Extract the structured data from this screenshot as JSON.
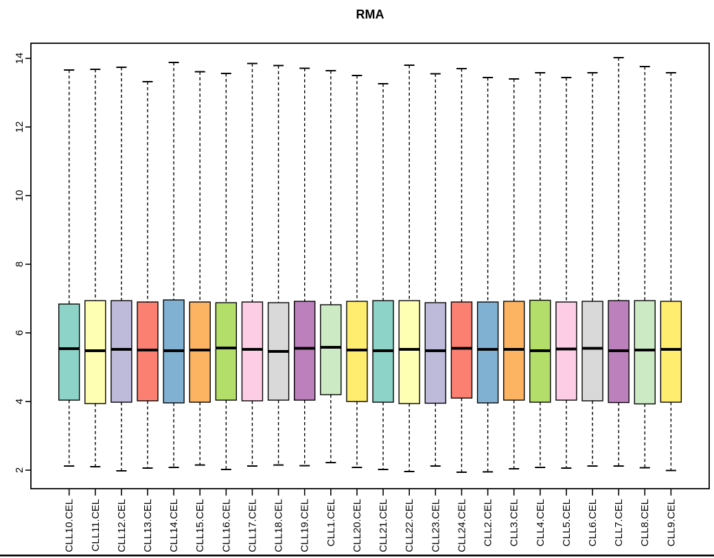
{
  "title": "RMA",
  "chart_data": {
    "type": "boxplot",
    "title": "RMA",
    "xlabel": "",
    "ylabel": "",
    "ylim": [
      1.44,
      14.44
    ],
    "yticks": [
      2,
      4,
      6,
      8,
      10,
      12,
      14
    ],
    "grid": false,
    "legend": "none",
    "palette": "Set3",
    "categories": [
      "CLL10.CEL",
      "CLL11.CEL",
      "CLL12.CEL",
      "CLL13.CEL",
      "CLL14.CEL",
      "CLL15.CEL",
      "CLL16.CEL",
      "CLL17.CEL",
      "CLL18.CEL",
      "CLL19.CEL",
      "CLL1.CEL",
      "CLL20.CEL",
      "CLL21.CEL",
      "CLL22.CEL",
      "CLL23.CEL",
      "CLL24.CEL",
      "CLL2.CEL",
      "CLL3.CEL",
      "CLL4.CEL",
      "CLL5.CEL",
      "CLL6.CEL",
      "CLL7.CEL",
      "CLL8.CEL",
      "CLL9.CEL"
    ],
    "series": [
      {
        "name": "CLL10.CEL",
        "color": "#8DD3C7",
        "low": 2.12,
        "q1": 4.04,
        "median": 5.54,
        "q3": 6.84,
        "high": 13.66
      },
      {
        "name": "CLL11.CEL",
        "color": "#FFFFB3",
        "low": 2.1,
        "q1": 3.94,
        "median": 5.48,
        "q3": 6.94,
        "high": 13.68
      },
      {
        "name": "CLL12.CEL",
        "color": "#BEBADA",
        "low": 1.98,
        "q1": 3.98,
        "median": 5.52,
        "q3": 6.94,
        "high": 13.74
      },
      {
        "name": "CLL13.CEL",
        "color": "#FB8072",
        "low": 2.06,
        "q1": 4.02,
        "median": 5.5,
        "q3": 6.9,
        "high": 13.32
      },
      {
        "name": "CLL14.CEL",
        "color": "#80B1D3",
        "low": 2.08,
        "q1": 3.96,
        "median": 5.48,
        "q3": 6.96,
        "high": 13.88
      },
      {
        "name": "CLL15.CEL",
        "color": "#FDB462",
        "low": 2.15,
        "q1": 3.98,
        "median": 5.5,
        "q3": 6.9,
        "high": 13.61
      },
      {
        "name": "CLL16.CEL",
        "color": "#B3DE69",
        "low": 2.02,
        "q1": 4.04,
        "median": 5.56,
        "q3": 6.88,
        "high": 13.56
      },
      {
        "name": "CLL17.CEL",
        "color": "#FCCDE5",
        "low": 2.12,
        "q1": 4.02,
        "median": 5.52,
        "q3": 6.9,
        "high": 13.85
      },
      {
        "name": "CLL18.CEL",
        "color": "#D9D9D9",
        "low": 2.15,
        "q1": 4.04,
        "median": 5.46,
        "q3": 6.88,
        "high": 13.79
      },
      {
        "name": "CLL19.CEL",
        "color": "#BC80BD",
        "low": 2.13,
        "q1": 4.04,
        "median": 5.55,
        "q3": 6.92,
        "high": 13.71
      },
      {
        "name": "CLL1.CEL",
        "color": "#CCEBC5",
        "low": 2.22,
        "q1": 4.2,
        "median": 5.58,
        "q3": 6.82,
        "high": 13.64
      },
      {
        "name": "CLL20.CEL",
        "color": "#FFED6F",
        "low": 2.08,
        "q1": 4.0,
        "median": 5.5,
        "q3": 6.92,
        "high": 13.5
      },
      {
        "name": "CLL21.CEL",
        "color": "#8DD3C7",
        "low": 2.02,
        "q1": 3.98,
        "median": 5.48,
        "q3": 6.94,
        "high": 13.26
      },
      {
        "name": "CLL22.CEL",
        "color": "#FFFFB3",
        "low": 1.96,
        "q1": 3.94,
        "median": 5.52,
        "q3": 6.94,
        "high": 13.8
      },
      {
        "name": "CLL23.CEL",
        "color": "#BEBADA",
        "low": 2.12,
        "q1": 3.95,
        "median": 5.48,
        "q3": 6.88,
        "high": 13.55
      },
      {
        "name": "CLL24.CEL",
        "color": "#FB8072",
        "low": 1.94,
        "q1": 4.1,
        "median": 5.55,
        "q3": 6.9,
        "high": 13.7
      },
      {
        "name": "CLL2.CEL",
        "color": "#80B1D3",
        "low": 1.95,
        "q1": 3.96,
        "median": 5.52,
        "q3": 6.9,
        "high": 13.44
      },
      {
        "name": "CLL3.CEL",
        "color": "#FDB462",
        "low": 2.04,
        "q1": 4.04,
        "median": 5.52,
        "q3": 6.92,
        "high": 13.4
      },
      {
        "name": "CLL4.CEL",
        "color": "#B3DE69",
        "low": 2.08,
        "q1": 3.98,
        "median": 5.48,
        "q3": 6.95,
        "high": 13.58
      },
      {
        "name": "CLL5.CEL",
        "color": "#FCCDE5",
        "low": 2.06,
        "q1": 4.04,
        "median": 5.53,
        "q3": 6.9,
        "high": 13.44
      },
      {
        "name": "CLL6.CEL",
        "color": "#D9D9D9",
        "low": 2.12,
        "q1": 4.02,
        "median": 5.55,
        "q3": 6.92,
        "high": 13.58
      },
      {
        "name": "CLL7.CEL",
        "color": "#BC80BD",
        "low": 2.12,
        "q1": 3.97,
        "median": 5.48,
        "q3": 6.94,
        "high": 14.02
      },
      {
        "name": "CLL8.CEL",
        "color": "#CCEBC5",
        "low": 2.07,
        "q1": 3.93,
        "median": 5.5,
        "q3": 6.94,
        "high": 13.76
      },
      {
        "name": "CLL9.CEL",
        "color": "#FFED6F",
        "low": 1.99,
        "q1": 3.98,
        "median": 5.52,
        "q3": 6.92,
        "high": 13.58
      }
    ],
    "box_border_color": "#000000",
    "median_color": "#000000",
    "whisker_color": "#000000"
  }
}
